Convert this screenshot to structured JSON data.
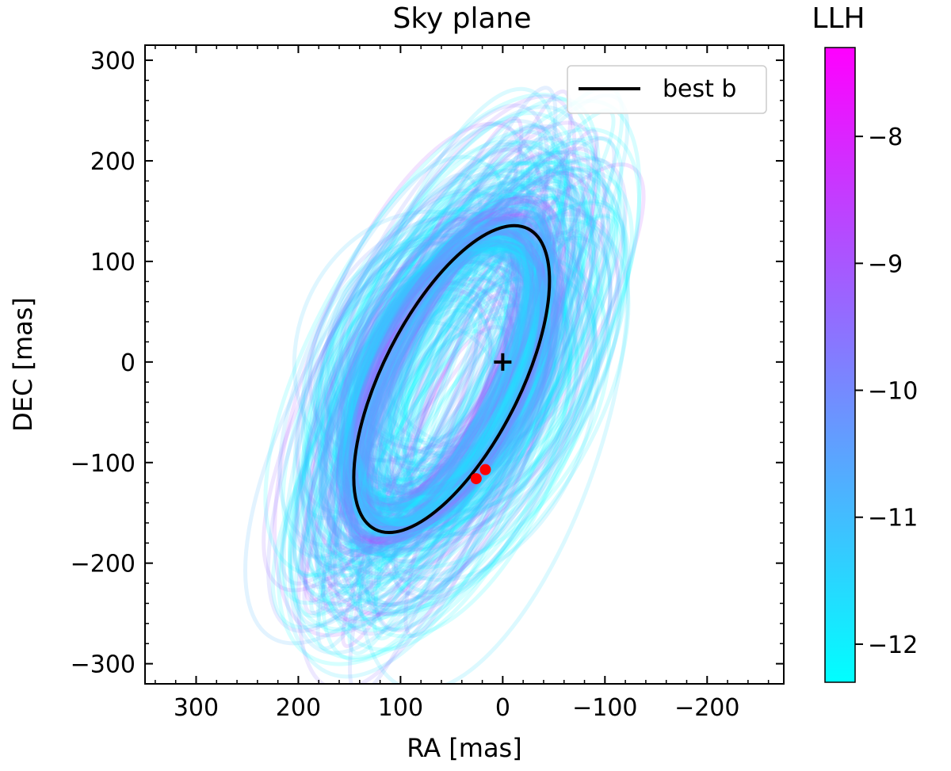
{
  "chart_data": {
    "type": "line",
    "title": "Sky plane",
    "xlabel": "RA [mas]",
    "ylabel": "DEC [mas]",
    "xlim": [
      350,
      -275
    ],
    "ylim": [
      -320,
      315
    ],
    "xticks": [
      300,
      200,
      100,
      0,
      -100,
      -200
    ],
    "xtick_labels": [
      "300",
      "200",
      "100",
      "0",
      "−100",
      "−200"
    ],
    "yticks": [
      300,
      200,
      100,
      0,
      -100,
      -200,
      -300
    ],
    "ytick_labels": [
      "300",
      "200",
      "100",
      "0",
      "−100",
      "−200",
      "−300"
    ],
    "grid": false,
    "legend": {
      "position": "top-right",
      "entries": [
        {
          "label": "best b",
          "color": "#000000"
        }
      ]
    },
    "best_orbit": {
      "name": "best b",
      "color": "#000000",
      "center": [
        50,
        -17
      ],
      "semi_axes": [
        165,
        68
      ],
      "rotation_deg": 63
    },
    "orbit_samples": {
      "count": 200,
      "center_range": {
        "ra": [
          5,
          95
        ],
        "dec": [
          -65,
          30
        ]
      },
      "semi_major_range": [
        95,
        280
      ],
      "semi_minor_range": [
        30,
        115
      ],
      "rotation_range_deg": [
        55,
        72
      ],
      "llh_range": [
        -12.3,
        -7.3
      ]
    },
    "star_marker": {
      "ra": 0,
      "dec": 0,
      "symbol": "+"
    },
    "data_points": [
      {
        "ra": 26,
        "dec": -116,
        "color": "#ff0000"
      },
      {
        "ra": 17,
        "dec": -107,
        "color": "#ff0000"
      }
    ],
    "colorbar": {
      "title": "LLH",
      "range": [
        -12.3,
        -7.3
      ],
      "ticks": [
        -8,
        -9,
        -10,
        -11,
        -12
      ],
      "tick_labels": [
        "−8",
        "−9",
        "−10",
        "−11",
        "−12"
      ],
      "color_min": "#00ffff",
      "color_max": "#ff00ff"
    }
  }
}
